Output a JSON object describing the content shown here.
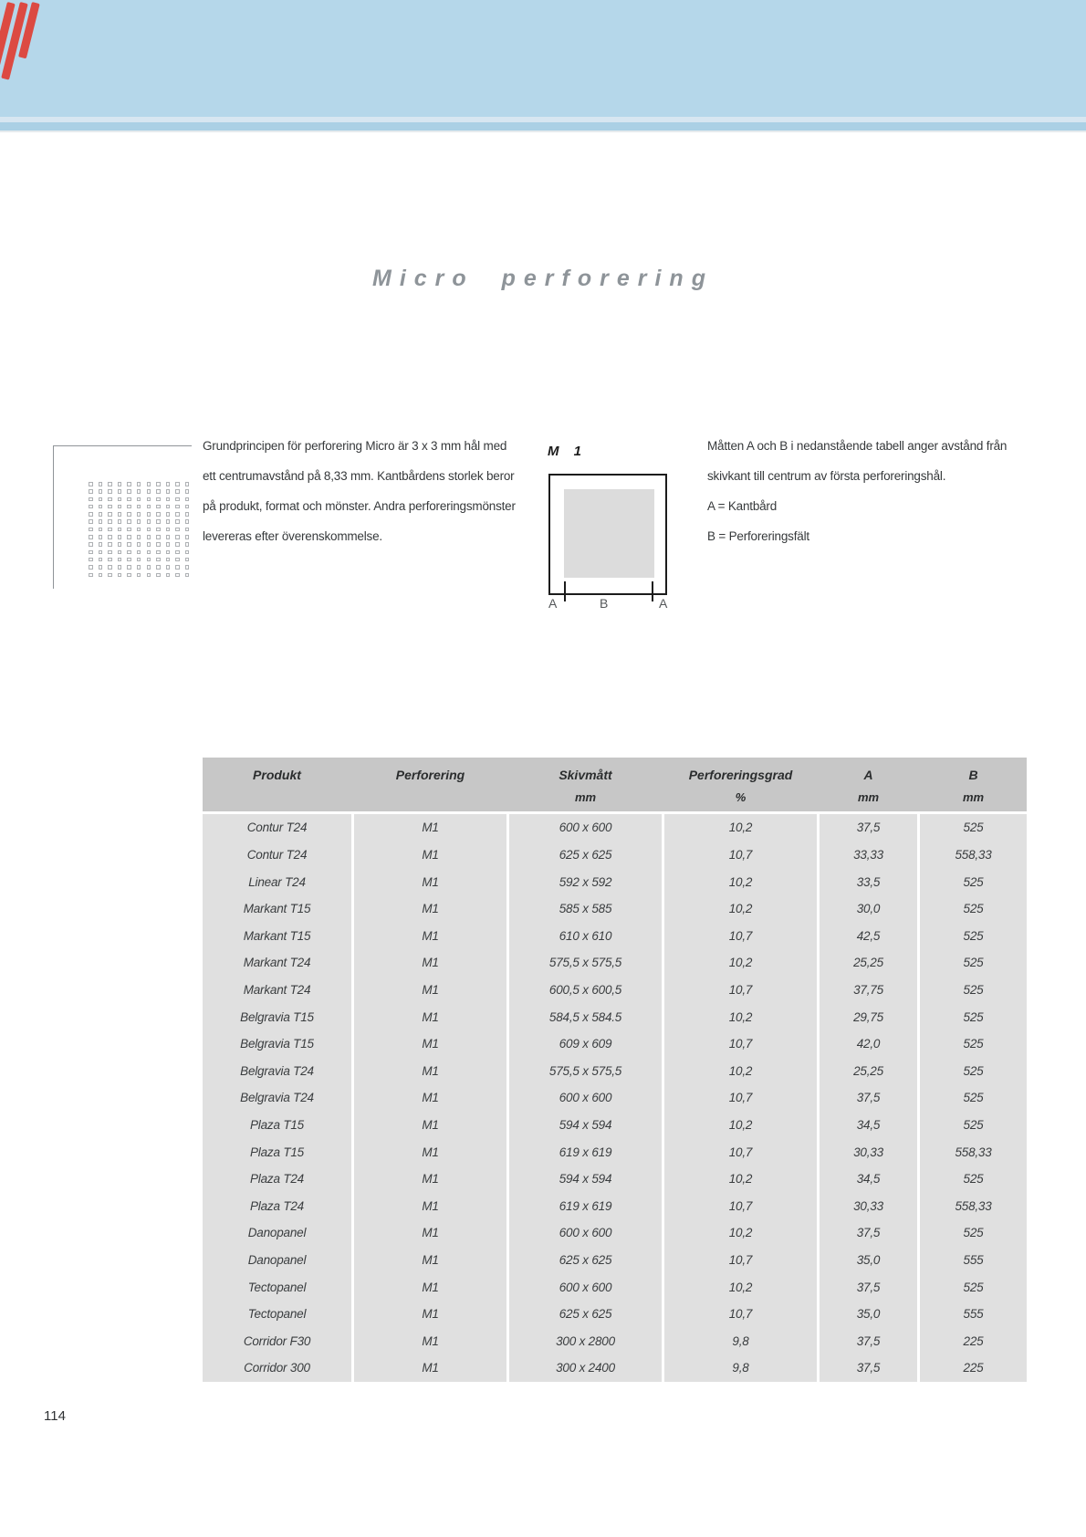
{
  "title": "Micro perforering",
  "intro": {
    "lines": [
      "Grundprincipen för perforering Micro är 3 x 3 mm hål med",
      "ett centrumavstånd på 8,33 mm. Kantbårdens storlek beror",
      "på produkt, format och mönster. Andra perforeringsmönster",
      "levereras efter överenskommelse."
    ]
  },
  "diagram": {
    "label": "M 1",
    "bottom_labels": [
      "A",
      "B",
      "A"
    ]
  },
  "note": {
    "lines": [
      "Måtten A och B i nedanstående tabell anger avstånd från",
      "skivkant till centrum av första perforeringshål.",
      "A = Kantbård",
      "B = Perforeringsfält"
    ]
  },
  "table": {
    "columns": [
      {
        "label": "Produkt",
        "unit": ""
      },
      {
        "label": "Perforering",
        "unit": ""
      },
      {
        "label": "Skivmått",
        "unit": "mm"
      },
      {
        "label": "Perforeringsgrad",
        "unit": "%"
      },
      {
        "label": "A",
        "unit": "mm"
      },
      {
        "label": "B",
        "unit": "mm"
      }
    ],
    "rows": [
      [
        "Contur T24",
        "M1",
        "600 x 600",
        "10,2",
        "37,5",
        "525"
      ],
      [
        "Contur T24",
        "M1",
        "625 x 625",
        "10,7",
        "33,33",
        "558,33"
      ],
      [
        "Linear T24",
        "M1",
        "592 x 592",
        "10,2",
        "33,5",
        "525"
      ],
      [
        "Markant T15",
        "M1",
        "585 x 585",
        "10,2",
        "30,0",
        "525"
      ],
      [
        "Markant T15",
        "M1",
        "610 x 610",
        "10,7",
        "42,5",
        "525"
      ],
      [
        "Markant T24",
        "M1",
        "575,5 x 575,5",
        "10,2",
        "25,25",
        "525"
      ],
      [
        "Markant T24",
        "M1",
        "600,5 x 600,5",
        "10,7",
        "37,75",
        "525"
      ],
      [
        "Belgravia T15",
        "M1",
        "584,5 x 584.5",
        "10,2",
        "29,75",
        "525"
      ],
      [
        "Belgravia T15",
        "M1",
        "609 x 609",
        "10,7",
        "42,0",
        "525"
      ],
      [
        "Belgravia T24",
        "M1",
        "575,5 x 575,5",
        "10,2",
        "25,25",
        "525"
      ],
      [
        "Belgravia T24",
        "M1",
        "600 x 600",
        "10,7",
        "37,5",
        "525"
      ],
      [
        "Plaza T15",
        "M1",
        "594 x 594",
        "10,2",
        "34,5",
        "525"
      ],
      [
        "Plaza T15",
        "M1",
        "619 x 619",
        "10,7",
        "30,33",
        "558,33"
      ],
      [
        "Plaza T24",
        "M1",
        "594 x 594",
        "10,2",
        "34,5",
        "525"
      ],
      [
        "Plaza T24",
        "M1",
        "619 x 619",
        "10,7",
        "30,33",
        "558,33"
      ],
      [
        "Danopanel",
        "M1",
        "600 x 600",
        "10,2",
        "37,5",
        "525"
      ],
      [
        "Danopanel",
        "M1",
        "625 x 625",
        "10,7",
        "35,0",
        "555"
      ],
      [
        "Tectopanel",
        "M1",
        "600 x 600",
        "10,2",
        "37,5",
        "525"
      ],
      [
        "Tectopanel",
        "M1",
        "625 x 625",
        "10,7",
        "35,0",
        "555"
      ],
      [
        "Corridor F30",
        "M1",
        "300 x 2800",
        "9,8",
        "37,5",
        "225"
      ],
      [
        "Corridor 300",
        "M1",
        "300 x 2400",
        "9,8",
        "37,5",
        "225"
      ]
    ]
  },
  "pattern_graphic": {
    "rows": 13,
    "cols": 11
  },
  "page": {
    "number": "114"
  },
  "colors": {
    "band_blue": "#b5d7ea",
    "accent_red": "#dc4a42",
    "header_gray": "#c7c7c7",
    "cell_gray": "#e0e0e0",
    "title_gray": "#8e9499"
  }
}
